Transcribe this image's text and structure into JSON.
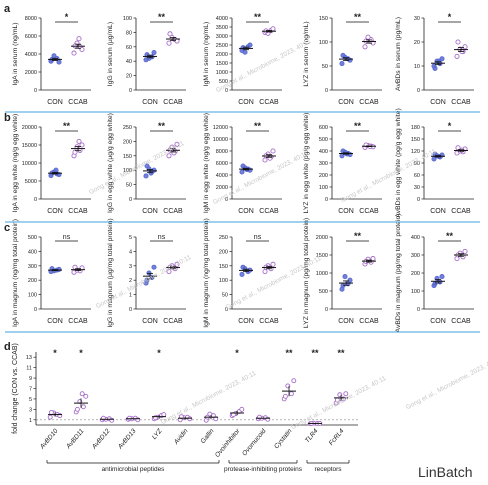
{
  "chart_data": {
    "type": "scatter",
    "colors": {
      "con": "#5b6bd2",
      "ccab": "#a56cc8",
      "divider": "#3fa2dc",
      "axis": "#222222"
    },
    "panels_top": [
      {
        "letter": "a",
        "ylabel": "IgA in serum (ng/mL)",
        "yticks": [
          "0",
          "2000",
          "4000",
          "6000",
          "8000"
        ],
        "ymax": 8000,
        "con": [
          3200,
          3500,
          3800,
          3100,
          3400
        ],
        "ccab": [
          4100,
          4800,
          5200,
          4500,
          4900,
          5700
        ],
        "sig": "*"
      },
      {
        "letter": "",
        "ylabel": "IgG in serum (μg/mL)",
        "yticks": [
          "0",
          "20",
          "40",
          "60",
          "80",
          "100"
        ],
        "ymax": 100,
        "con": [
          42,
          46,
          44,
          52,
          49
        ],
        "ccab": [
          65,
          70,
          73,
          68,
          78
        ],
        "sig": "**"
      },
      {
        "letter": "",
        "ylabel": "IgM in serum (ng/mL)",
        "yticks": [
          "0",
          "500",
          "1000",
          "1500",
          "2000",
          "2500",
          "3000",
          "3500",
          "4000"
        ],
        "ymax": 4000,
        "con": [
          2200,
          2400,
          2100,
          2500,
          2350
        ],
        "ccab": [
          3200,
          3300,
          3150,
          3400,
          3280
        ],
        "sig": "**"
      },
      {
        "letter": "",
        "ylabel": "LYZ in serum (ng/mL)",
        "yticks": [
          "0",
          "50",
          "100",
          "150"
        ],
        "ymax": 150,
        "con": [
          55,
          65,
          68,
          62,
          72
        ],
        "ccab": [
          90,
          105,
          110,
          98,
          102
        ],
        "sig": "**"
      },
      {
        "letter": "",
        "ylabel": "AvBDs in serum (pg/mL)",
        "yticks": [
          "0",
          "10",
          "20",
          "30"
        ],
        "ymax": 30,
        "con": [
          10,
          11,
          12,
          13,
          9,
          12
        ],
        "ccab": [
          14,
          16,
          17,
          18,
          20,
          16
        ],
        "sig": "*"
      }
    ],
    "panels_mid": [
      {
        "letter": "b",
        "ylabel": "IgA in egg white (ng/g egg white)",
        "yticks": [
          "0",
          "5000",
          "10000",
          "15000",
          "20000"
        ],
        "ymax": 20000,
        "con": [
          6500,
          7000,
          7500,
          6800,
          7200,
          8000
        ],
        "ccab": [
          12000,
          13500,
          14500,
          15000,
          13000,
          16000
        ],
        "sig": "**"
      },
      {
        "letter": "",
        "ylabel": "IgG in egg white (μg/g egg white)",
        "yticks": [
          "0",
          "50",
          "100",
          "150",
          "200",
          "250"
        ],
        "ymax": 250,
        "con": [
          80,
          95,
          105,
          100,
          115,
          90
        ],
        "ccab": [
          150,
          165,
          180,
          190,
          170,
          160
        ],
        "sig": "**"
      },
      {
        "letter": "",
        "ylabel": "IgM in egg white (ng/g egg white)",
        "yticks": [
          "0",
          "2000",
          "4000",
          "6000",
          "8000",
          "10000",
          "12000"
        ],
        "ymax": 12000,
        "con": [
          4500,
          5000,
          5200,
          4800,
          5500,
          4900
        ],
        "ccab": [
          6500,
          7000,
          7500,
          8000,
          7200,
          6800
        ],
        "sig": "**"
      },
      {
        "letter": "",
        "ylabel": "LYZ in egg white (pg/g egg white)",
        "yticks": [
          "0",
          "100",
          "200",
          "300",
          "400",
          "500",
          "600"
        ],
        "ymax": 600,
        "con": [
          360,
          380,
          390,
          370,
          400,
          375
        ],
        "ccab": [
          430,
          440,
          445,
          435,
          450,
          438
        ],
        "sig": "**"
      },
      {
        "letter": "",
        "ylabel": "AvBDs in egg white (pg/g egg white)",
        "yticks": [
          "0",
          "30",
          "60",
          "90",
          "120",
          "150",
          "180"
        ],
        "ymax": 180,
        "con": [
          100,
          105,
          108,
          110,
          112,
          106
        ],
        "ccab": [
          115,
          118,
          120,
          125,
          128,
          122
        ],
        "sig": "*"
      }
    ],
    "panels_bot": [
      {
        "letter": "c",
        "ylabel": "IgA in magnum (ng/mg total protein)",
        "yticks": [
          "0",
          "100",
          "200",
          "300",
          "400",
          "500"
        ],
        "ymax": 500,
        "con": [
          260,
          270,
          265,
          275,
          280
        ],
        "ccab": [
          255,
          265,
          270,
          285,
          290
        ],
        "sig": "ns"
      },
      {
        "letter": "",
        "ylabel": "IgG in magnum (μg/mg total protein)",
        "yticks": [
          "0",
          "1",
          "2",
          "3",
          "4",
          "5"
        ],
        "ymax": 5,
        "con": [
          1.8,
          2.2,
          2.5,
          2.9,
          2.0
        ],
        "ccab": [
          2.6,
          2.8,
          3.0,
          3.1,
          2.9
        ],
        "sig": "ns"
      },
      {
        "letter": "",
        "ylabel": "IgM in magnum (ng/mg total protein)",
        "yticks": [
          "0",
          "50",
          "100",
          "150",
          "200",
          "250"
        ],
        "ymax": 250,
        "con": [
          120,
          130,
          140,
          135,
          145
        ],
        "ccab": [
          130,
          140,
          150,
          155,
          145
        ],
        "sig": "ns"
      },
      {
        "letter": "",
        "ylabel": "LYZ in magnum (pg/mg total protein)",
        "yticks": [
          "0",
          "500",
          "1000",
          "1500",
          "2000"
        ],
        "ymax": 2000,
        "con": [
          550,
          700,
          900,
          800,
          650
        ],
        "ccab": [
          1250,
          1300,
          1380,
          1400,
          1320
        ],
        "sig": "**"
      },
      {
        "letter": "",
        "ylabel": "AvBDs in magnum (pg/mg total protein)",
        "yticks": [
          "0",
          "100",
          "200",
          "300",
          "400"
        ],
        "ymax": 400,
        "con": [
          130,
          150,
          170,
          180,
          140
        ],
        "ccab": [
          280,
          290,
          310,
          320,
          300
        ],
        "sig": "**"
      }
    ],
    "xcats": [
      "CON",
      "CCAB"
    ],
    "fold": {
      "letter": "d",
      "ylabel": "fold change (CON vs. CCAB)",
      "yticks": [
        "1",
        "3",
        "5",
        "7",
        "9",
        "11",
        "13"
      ],
      "ymin": 0,
      "ymax": 14,
      "genes": [
        {
          "name": "AvBD10",
          "mean": 2.0,
          "sem": 0.4,
          "points": [
            1.5,
            2.0,
            2.3,
            1.8,
            2.4
          ],
          "sig": "*"
        },
        {
          "name": "AvBD11",
          "mean": 4.2,
          "sem": 0.9,
          "points": [
            2.5,
            3.5,
            4.5,
            5.5,
            3.0,
            6.0
          ],
          "sig": "*"
        },
        {
          "name": "AvBD12",
          "mean": 1.1,
          "sem": 0.1,
          "points": [
            1.0,
            1.2,
            1.1,
            0.9,
            1.3
          ],
          "sig": ""
        },
        {
          "name": "AvBD13",
          "mean": 1.2,
          "sem": 0.1,
          "points": [
            1.1,
            1.3,
            1.2,
            1.0,
            1.3
          ],
          "sig": ""
        },
        {
          "name": "LYZ",
          "mean": 1.6,
          "sem": 0.3,
          "points": [
            1.2,
            1.8,
            1.5,
            2.0,
            1.4
          ],
          "sig": "*"
        },
        {
          "name": "Avidin",
          "mean": 1.3,
          "sem": 0.2,
          "points": [
            1.0,
            1.5,
            1.4,
            1.2,
            1.6
          ],
          "sig": ""
        },
        {
          "name": "Gallin",
          "mean": 1.5,
          "sem": 0.4,
          "points": [
            0.9,
            1.8,
            2.1,
            1.2,
            1.5
          ],
          "sig": ""
        },
        {
          "name": "Ovoinhibitor",
          "mean": 2.3,
          "sem": 0.4,
          "points": [
            1.8,
            2.6,
            2.2,
            3.0,
            2.0
          ],
          "sig": "*"
        },
        {
          "name": "Ovomucoid",
          "mean": 1.3,
          "sem": 0.1,
          "points": [
            1.2,
            1.4,
            1.3,
            1.1,
            1.5
          ],
          "sig": ""
        },
        {
          "name": "Cystatin",
          "mean": 6.5,
          "sem": 1.0,
          "points": [
            5.0,
            6.0,
            7.5,
            8.5,
            5.5
          ],
          "sig": "**"
        },
        {
          "name": "TLR4",
          "mean": 0.3,
          "sem": 0.05,
          "points": [
            0.25,
            0.3,
            0.35,
            0.3,
            0.28
          ],
          "sig": "**"
        },
        {
          "name": "FcRL4",
          "mean": 5.2,
          "sem": 0.6,
          "points": [
            4.2,
            5.0,
            5.8,
            6.0,
            4.8
          ],
          "sig": "**"
        }
      ],
      "groups": [
        {
          "label": "antimicrobial peptides",
          "from": 0,
          "to": 6
        },
        {
          "label": "protease-inhibiting proteins",
          "from": 7,
          "to": 9
        },
        {
          "label": "receptors",
          "from": 10,
          "to": 11
        }
      ]
    }
  },
  "watermark": "Gong et al., Microbiome, 2023, 40:11",
  "brand": "LinBatch"
}
